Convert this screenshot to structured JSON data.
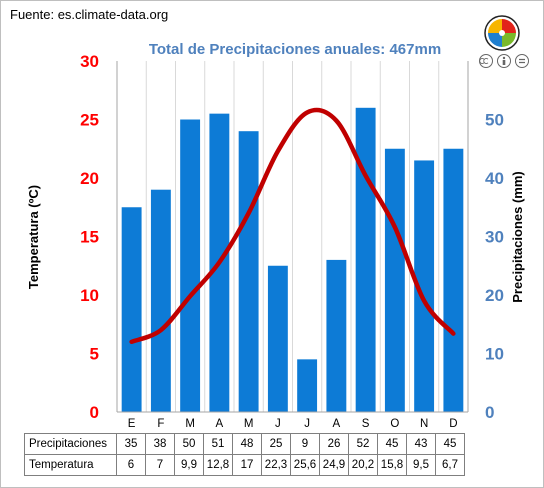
{
  "source": "Fuente: es.climate-data.org",
  "colors": {
    "bars": "#0d7bd6",
    "line": "#c00000",
    "left_axis": "#ff0000",
    "right_axis": "#4f81bd",
    "title": "#4f81bd"
  },
  "icons": {
    "logo": "puzzle-logo-icon",
    "license": "creative-commons-icon"
  },
  "chart_data": {
    "type": "bar",
    "title": "Total de Precipitaciones anuales: 467mm",
    "categories": [
      "E",
      "F",
      "M",
      "A",
      "M",
      "J",
      "J",
      "A",
      "S",
      "O",
      "N",
      "D"
    ],
    "ylabel_left": "Temperatura (ºC)",
    "ylabel_right": "Precipitaciones (mm)",
    "ylim_left": [
      0,
      30
    ],
    "ylim_right": [
      0,
      60
    ],
    "yticks_left": [
      "0",
      "5",
      "10",
      "15",
      "20",
      "25",
      "30"
    ],
    "yticks_right": [
      "0",
      "10",
      "20",
      "30",
      "40",
      "50"
    ],
    "yticks_right_values": [
      0,
      10,
      20,
      30,
      40,
      50
    ],
    "grid": "vertical",
    "series": [
      {
        "name": "Precipitaciones",
        "type": "bar",
        "axis": "right",
        "values": [
          35,
          38,
          50,
          51,
          48,
          25,
          9,
          26,
          52,
          45,
          43,
          45
        ]
      },
      {
        "name": "Temperatura",
        "type": "line",
        "axis": "left",
        "values": [
          6,
          7,
          9.9,
          12.8,
          17,
          22.3,
          25.6,
          24.9,
          20.2,
          15.8,
          9.5,
          6.7
        ]
      }
    ],
    "table": {
      "rows": [
        {
          "label": "Precipitaciones",
          "cells": [
            "35",
            "38",
            "50",
            "51",
            "48",
            "25",
            "9",
            "26",
            "52",
            "45",
            "43",
            "45"
          ]
        },
        {
          "label": "Temperatura",
          "cells": [
            "6",
            "7",
            "9,9",
            "12,8",
            "17",
            "22,3",
            "25,6",
            "24,9",
            "20,2",
            "15,8",
            "9,5",
            "6,7"
          ]
        }
      ]
    }
  }
}
